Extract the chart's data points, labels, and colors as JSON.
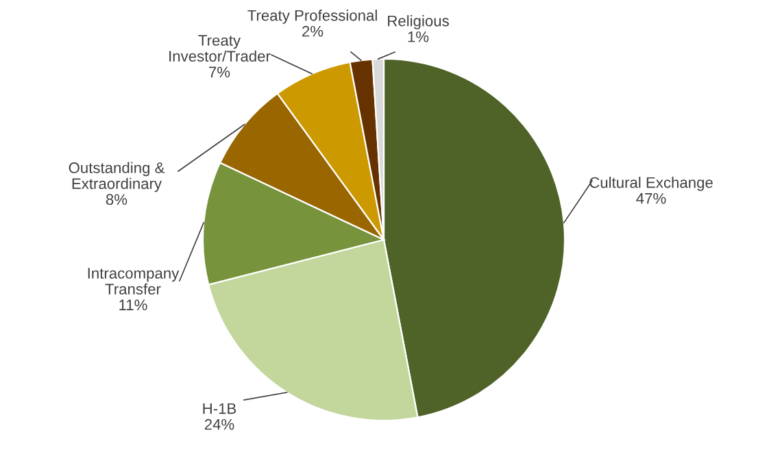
{
  "chart_data": {
    "type": "pie",
    "categories": [
      "Cultural Exchange",
      "H-1B",
      "Intracompany\nTransfer",
      "Outstanding &\nExtraordinary",
      "Treaty\nInvestor/Trader",
      "Treaty Professional",
      "Religious"
    ],
    "values": [
      47,
      24,
      11,
      8,
      7,
      2,
      1
    ],
    "value_labels": [
      "47%",
      "24%",
      "11%",
      "8%",
      "7%",
      "2%",
      "1%"
    ],
    "colors": [
      "#4f6228",
      "#c3d69b",
      "#77933c",
      "#996600",
      "#cc9900",
      "#663300",
      "#d9d9d9"
    ]
  }
}
